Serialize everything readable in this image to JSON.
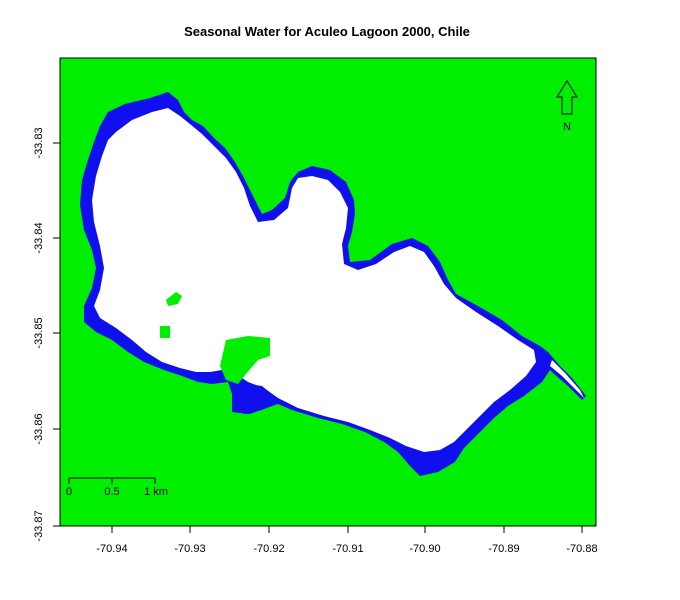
{
  "map": {
    "title": "Seasonal Water for Aculeo Lagoon 2000, Chile",
    "colors": {
      "land": "#00ee00",
      "permanent_water": "#ffffff",
      "seasonal_water": "#1010ee",
      "frame": "#000000"
    },
    "x_axis": {
      "ticks": [
        "-70.94",
        "-70.93",
        "-70.92",
        "-70.91",
        "-70.90",
        "-70.89",
        "-70.88"
      ]
    },
    "y_axis": {
      "ticks": [
        "-33.83",
        "-33.84",
        "-33.85",
        "-33.86",
        "-33.87"
      ]
    },
    "north_arrow": {
      "label": "N"
    },
    "scale_bar": {
      "labels": [
        "0",
        "0.5",
        "1 km"
      ]
    }
  }
}
